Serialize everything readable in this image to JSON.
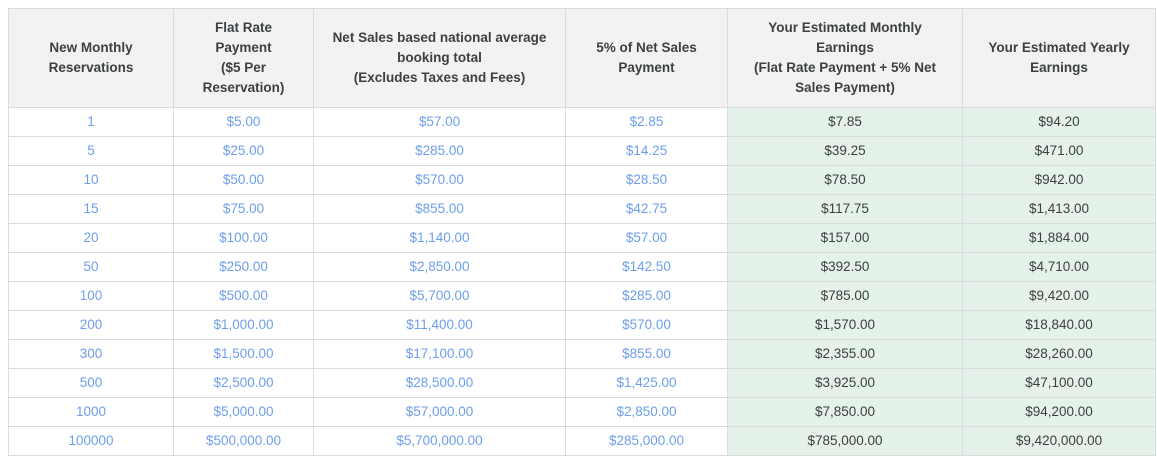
{
  "colors": {
    "header_bg": "#f2f2f2",
    "header_text": "#3c4043",
    "blue_value_text": "#6d9eeb",
    "green_cell_bg": "#e4f2e9",
    "dark_value_text": "#3c4043",
    "border": "#d8dbe0"
  },
  "chart_data": {
    "type": "table",
    "columns": [
      "New Monthly\nReservations",
      "Flat Rate\nPayment\n($5 Per\nReservation)",
      "Net Sales based national average\nbooking total\n(Excludes Taxes and Fees)",
      "5% of Net Sales\nPayment",
      "Your Estimated Monthly\nEarnings\n(Flat Rate Payment + 5% Net\nSales Payment)",
      "Your Estimated Yearly\nEarnings"
    ],
    "rows": [
      [
        "1",
        "$5.00",
        "$57.00",
        "$2.85",
        "$7.85",
        "$94.20"
      ],
      [
        "5",
        "$25.00",
        "$285.00",
        "$14.25",
        "$39.25",
        "$471.00"
      ],
      [
        "10",
        "$50.00",
        "$570.00",
        "$28.50",
        "$78.50",
        "$942.00"
      ],
      [
        "15",
        "$75.00",
        "$855.00",
        "$42.75",
        "$117.75",
        "$1,413.00"
      ],
      [
        "20",
        "$100.00",
        "$1,140.00",
        "$57.00",
        "$157.00",
        "$1,884.00"
      ],
      [
        "50",
        "$250.00",
        "$2,850.00",
        "$142.50",
        "$392.50",
        "$4,710.00"
      ],
      [
        "100",
        "$500.00",
        "$5,700.00",
        "$285.00",
        "$785.00",
        "$9,420.00"
      ],
      [
        "200",
        "$1,000.00",
        "$11,400.00",
        "$570.00",
        "$1,570.00",
        "$18,840.00"
      ],
      [
        "300",
        "$1,500.00",
        "$17,100.00",
        "$855.00",
        "$2,355.00",
        "$28,260.00"
      ],
      [
        "500",
        "$2,500.00",
        "$28,500.00",
        "$1,425.00",
        "$3,925.00",
        "$47,100.00"
      ],
      [
        "1000",
        "$5,000.00",
        "$57,000.00",
        "$2,850.00",
        "$7,850.00",
        "$94,200.00"
      ],
      [
        "100000",
        "$500,000.00",
        "$5,700,000.00",
        "$285,000.00",
        "$785,000.00",
        "$9,420,000.00"
      ]
    ]
  }
}
